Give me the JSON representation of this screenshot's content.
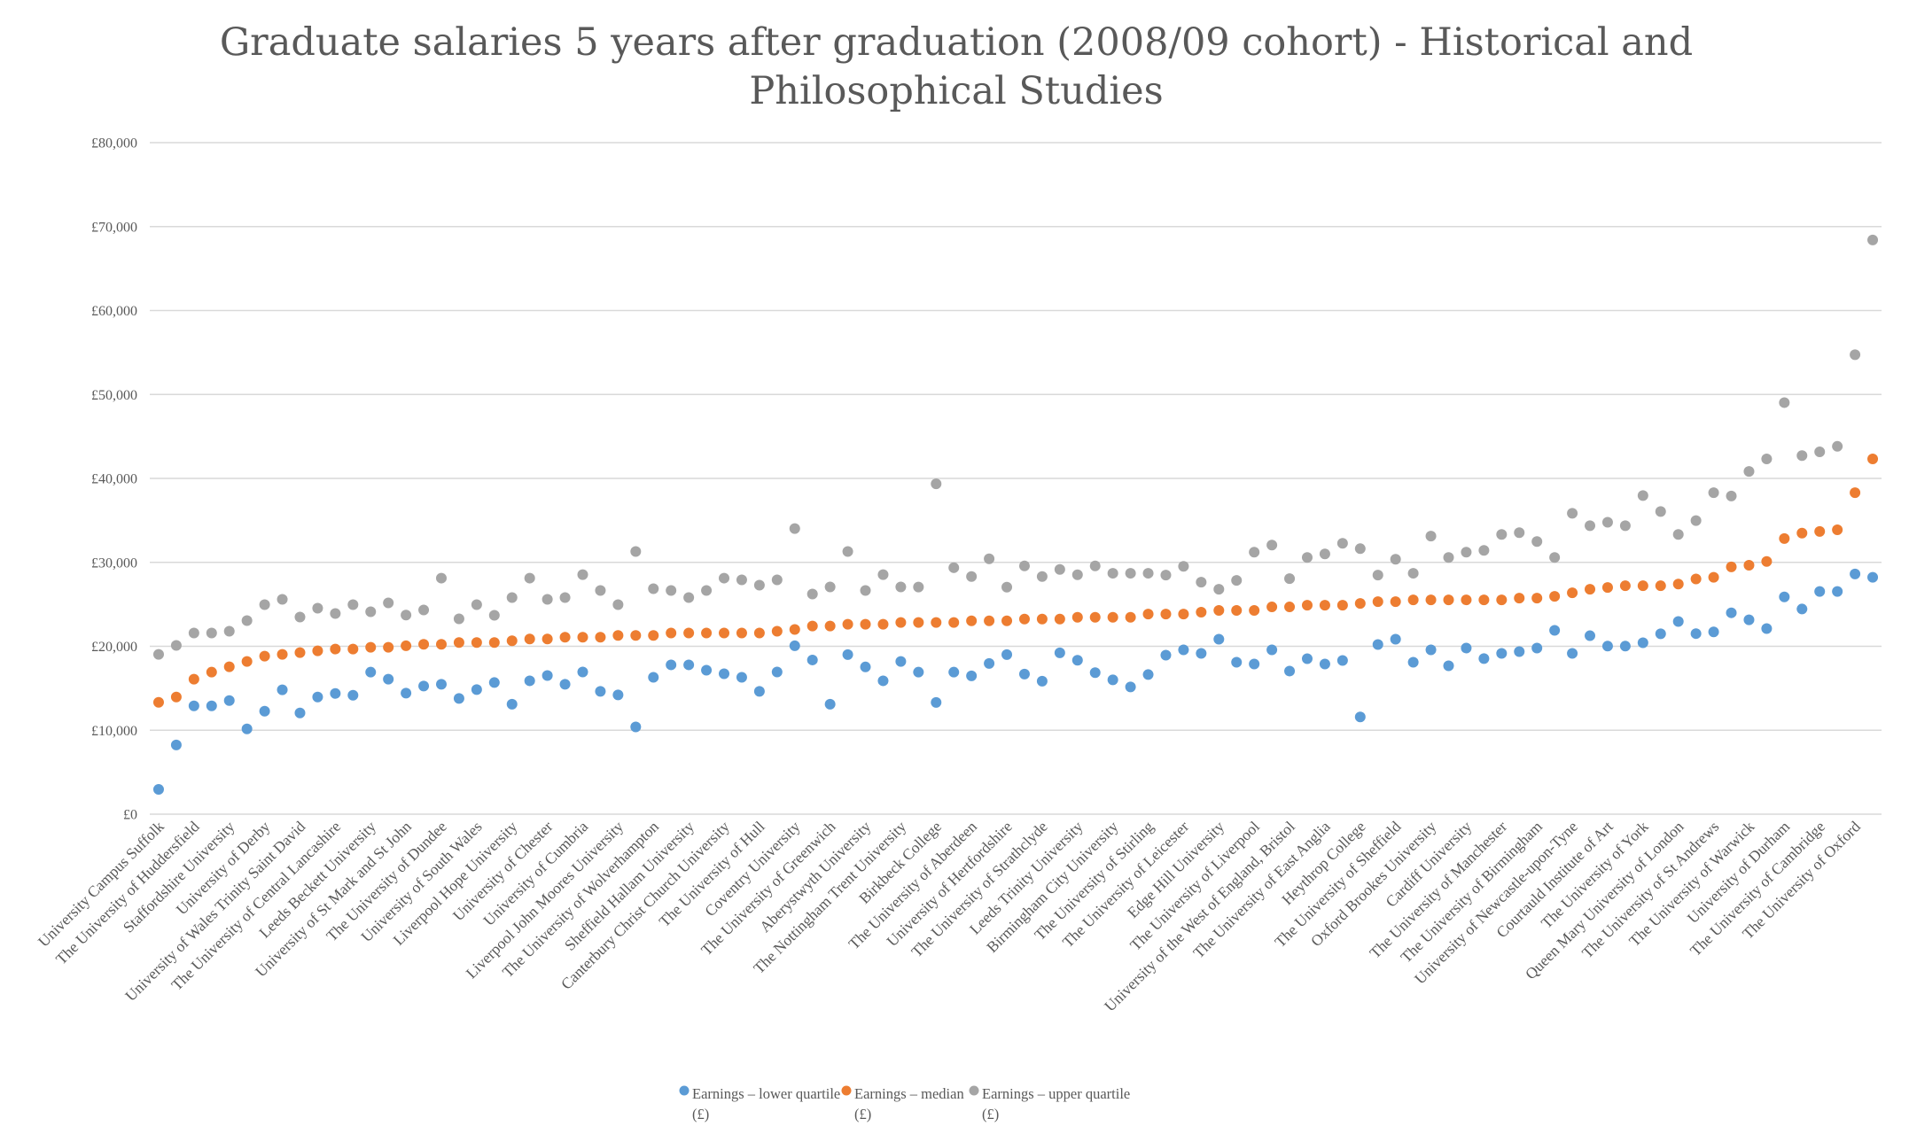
{
  "chart_data": {
    "type": "scatter",
    "title": "Graduate salaries 5 years after graduation (2008/09 cohort) - Historical and Philosophical Studies",
    "title_lines": [
      "Graduate salaries 5 years after graduation (2008/09 cohort) - Historical and",
      "Philosophical Studies"
    ],
    "xlabel": "",
    "ylabel": "",
    "ylim": [
      0,
      80000
    ],
    "yticks": [
      0,
      10000,
      20000,
      30000,
      40000,
      50000,
      60000,
      70000,
      80000
    ],
    "ytick_labels": [
      "£0",
      "£10,000",
      "£20,000",
      "£30,000",
      "£40,000",
      "£50,000",
      "£60,000",
      "£70,000",
      "£80,000"
    ],
    "grid": true,
    "legend_position": "bottom",
    "category_count": 98,
    "label_every": 2,
    "x_tick_labels": [
      "University Campus Suffolk",
      "The University of Huddersfield",
      "Staffordshire University",
      "University of Derby",
      "University of Wales Trinity Saint David",
      "The University of Central Lancashire",
      "Leeds Beckett University",
      "University of St Mark and St John",
      "The University of Dundee",
      "University of South Wales",
      "Liverpool Hope University",
      "University of Chester",
      "University of Cumbria",
      "Liverpool John Moores University",
      "The University of Wolverhampton",
      "Sheffield Hallam University",
      "Canterbury Christ Church University",
      "The University of Hull",
      "Coventry University",
      "The University of Greenwich",
      "Aberystwyth University",
      "The Nottingham Trent University",
      "Birkbeck College",
      "The University of Aberdeen",
      "University of Hertfordshire",
      "The University of Strathclyde",
      "Leeds Trinity University",
      "Birmingham City University",
      "The University of Stirling",
      "The University of Leicester",
      "Edge Hill University",
      "The University of Liverpool",
      "University of the West of England, Bristol",
      "The University of East Anglia",
      "Heythrop College",
      "The University of Sheffield",
      "Oxford Brookes University",
      "Cardiff University",
      "The University of Manchester",
      "The University of Birmingham",
      "University of Newcastle-upon-Tyne",
      "Courtauld Institute of Art",
      "The University of York",
      "Queen Mary University of London",
      "The University of St Andrews",
      "The University of Warwick",
      "University of Durham",
      "The University of Cambridge",
      "The University of Oxford"
    ],
    "series": [
      {
        "name": "Earnings – lower quartile (£)",
        "name_lines": [
          "Earnings – lower quartile",
          "(£)"
        ],
        "color": "#5b9bd5",
        "values": [
          2960,
          8250,
          12900,
          12900,
          13540,
          10160,
          12270,
          14810,
          12060,
          13960,
          14380,
          14170,
          16920,
          16080,
          14420,
          15260,
          15470,
          13790,
          14840,
          15680,
          13100,
          15890,
          16520,
          15470,
          16940,
          14630,
          14210,
          10400,
          16310,
          17790,
          17790,
          17150,
          16730,
          16310,
          14630,
          16940,
          20060,
          18370,
          13100,
          19010,
          17540,
          15890,
          18190,
          16920,
          13310,
          16920,
          16480,
          17960,
          19010,
          16690,
          15840,
          19220,
          18340,
          16860,
          16000,
          15160,
          16630,
          18950,
          19580,
          19160,
          20840,
          18100,
          17890,
          19580,
          17050,
          18520,
          17890,
          18310,
          11580,
          20210,
          20840,
          18100,
          19580,
          17680,
          19790,
          18530,
          19160,
          19370,
          19790,
          21900,
          19160,
          21260,
          20020,
          20020,
          20420,
          21490,
          22950,
          21510,
          21710,
          23990,
          23150,
          22110,
          25880,
          24440,
          26530,
          26530,
          28610,
          28220
        ]
      },
      {
        "name": "Earnings – median (£)",
        "name_lines": [
          "Earnings – median",
          "(£)"
        ],
        "color": "#ed7d31",
        "values": [
          13320,
          13960,
          16080,
          16920,
          17560,
          18190,
          18830,
          19040,
          19250,
          19460,
          19670,
          19670,
          19880,
          19880,
          20060,
          20240,
          20240,
          20450,
          20450,
          20450,
          20660,
          20870,
          20870,
          21080,
          21080,
          21080,
          21290,
          21290,
          21290,
          21580,
          21580,
          21580,
          21580,
          21580,
          21580,
          21790,
          22000,
          22420,
          22420,
          22630,
          22630,
          22630,
          22840,
          22840,
          22840,
          22840,
          23040,
          23040,
          23040,
          23240,
          23240,
          23240,
          23460,
          23460,
          23460,
          23460,
          23840,
          23840,
          23840,
          24060,
          24270,
          24270,
          24270,
          24690,
          24690,
          24900,
          24900,
          24900,
          25110,
          25320,
          25320,
          25530,
          25530,
          25530,
          25530,
          25530,
          25530,
          25740,
          25740,
          25950,
          26370,
          26790,
          27000,
          27210,
          27210,
          27210,
          27420,
          28020,
          28220,
          29460,
          29660,
          30100,
          32840,
          33480,
          33680,
          33880,
          38300,
          42320
        ]
      },
      {
        "name": "Earnings – upper quartile (£)",
        "name_lines": [
          "Earnings – upper quartile",
          "(£)"
        ],
        "color": "#a5a5a5",
        "values": [
          19040,
          20100,
          21580,
          21580,
          21790,
          23060,
          24960,
          25590,
          23480,
          24540,
          23900,
          24960,
          24120,
          25170,
          23720,
          24330,
          28120,
          23270,
          24960,
          23690,
          25800,
          28120,
          25590,
          25800,
          28540,
          26650,
          24960,
          31290,
          26860,
          26650,
          25800,
          26650,
          28120,
          27910,
          27280,
          27910,
          34020,
          26230,
          27070,
          31290,
          26650,
          28540,
          27070,
          27060,
          39350,
          29360,
          28310,
          30420,
          27050,
          29580,
          28310,
          29150,
          28520,
          29580,
          28700,
          28700,
          28700,
          28480,
          29530,
          27640,
          26800,
          27850,
          31210,
          32060,
          28060,
          30580,
          31000,
          32270,
          31630,
          28480,
          30370,
          28700,
          33130,
          30580,
          31210,
          31420,
          33320,
          33530,
          32480,
          30580,
          35840,
          34370,
          34780,
          34370,
          37950,
          36060,
          33320,
          34970,
          38300,
          37900,
          40830,
          42320,
          49030,
          42720,
          43170,
          43820,
          54740,
          68400
        ]
      }
    ]
  }
}
